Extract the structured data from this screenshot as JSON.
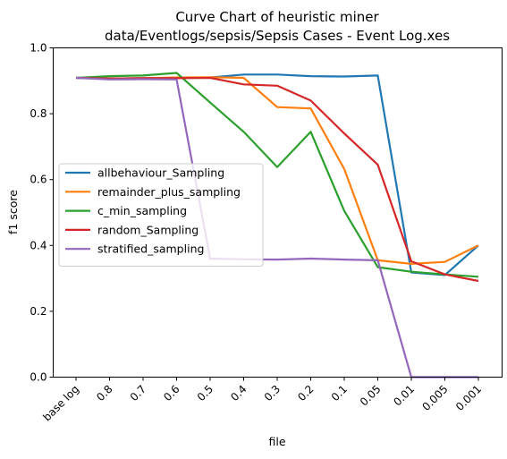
{
  "chart_data": {
    "type": "line",
    "title": "Curve Chart of heuristic miner",
    "subtitle": "data/Eventlogs/sepsis/Sepsis Cases - Event Log.xes",
    "xlabel": "file",
    "ylabel": "f1 score",
    "ylim": [
      0,
      1.0
    ],
    "yticks": [
      "0.0",
      "0.2",
      "0.4",
      "0.6",
      "0.8",
      "1.0"
    ],
    "categories": [
      "base log",
      "0.8",
      "0.7",
      "0.6",
      "0.5",
      "0.4",
      "0.3",
      "0.2",
      "0.1",
      "0.05",
      "0.01",
      "0.005",
      "0.001"
    ],
    "legend_position": "center-left",
    "grid": false,
    "series": [
      {
        "name": "allbehaviour_Sampling",
        "color": "#1f77b4",
        "values": [
          0.909,
          0.907,
          0.908,
          0.909,
          0.91,
          0.919,
          0.919,
          0.914,
          0.913,
          0.916,
          0.318,
          0.31,
          0.4
        ]
      },
      {
        "name": "remainder_plus_sampling",
        "color": "#ff7f0e",
        "values": [
          0.909,
          0.907,
          0.908,
          0.91,
          0.911,
          0.909,
          0.82,
          0.816,
          0.632,
          0.355,
          0.344,
          0.35,
          0.4
        ]
      },
      {
        "name": "c_min_sampling",
        "color": "#2ca02c",
        "values": [
          0.909,
          0.914,
          0.916,
          0.924,
          0.834,
          0.745,
          0.638,
          0.745,
          0.505,
          0.334,
          0.32,
          0.312,
          0.305
        ]
      },
      {
        "name": "random_Sampling",
        "color": "#d62728",
        "values": [
          0.909,
          0.907,
          0.908,
          0.908,
          0.909,
          0.889,
          0.885,
          0.84,
          0.74,
          0.645,
          0.352,
          0.312,
          0.292
        ]
      },
      {
        "name": "stratified_sampling",
        "color": "#9467bd",
        "values": [
          0.909,
          0.904,
          0.905,
          0.904,
          0.36,
          0.358,
          0.357,
          0.36,
          0.357,
          0.355,
          0.0,
          0.0,
          0.0
        ]
      }
    ]
  }
}
